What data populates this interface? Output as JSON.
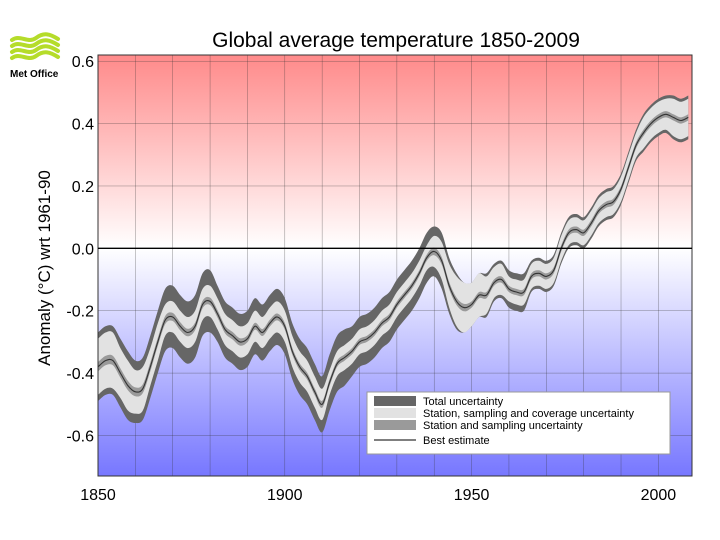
{
  "brand": {
    "name": "Met Office",
    "logo_color": "#b5dc2a"
  },
  "chart_data": {
    "type": "line",
    "title": "Global average temperature 1850-2009",
    "xlabel": "",
    "ylabel": "Anomaly (°C) wrt 1961-90",
    "xlim": [
      1850,
      2009
    ],
    "ylim": [
      -0.73,
      0.62
    ],
    "x_ticks": [
      1850,
      1900,
      1950,
      2000
    ],
    "y_ticks": [
      -0.6,
      -0.4,
      -0.2,
      0.0,
      0.2,
      0.4,
      0.6
    ],
    "y_tick_labels": [
      "-0.6",
      "-0.4",
      "-0.2",
      "0.0",
      "0.2",
      "0.4",
      "0.6"
    ],
    "x_tick_labels": [
      "1850",
      "1900",
      "1950",
      "2000"
    ],
    "grid": true,
    "background": {
      "warm_color": "#ff8a8a",
      "cool_color": "#7777ff"
    },
    "colors": {
      "total_uncertainty": "#666666",
      "coverage_uncertainty": "#e2e2e2",
      "sampling_uncertainty": "#9a9a9a",
      "best_estimate": "#333333"
    },
    "legend": {
      "position": "bottom-right",
      "entries": [
        "Total uncertainty",
        "Station, sampling and coverage uncertainty",
        "Station and sampling uncertainty",
        "Best estimate"
      ]
    },
    "series": [
      {
        "name": "Best estimate",
        "x": [
          1850,
          1852,
          1854,
          1856,
          1858,
          1860,
          1862,
          1864,
          1866,
          1868,
          1870,
          1872,
          1874,
          1876,
          1878,
          1880,
          1882,
          1884,
          1886,
          1888,
          1890,
          1892,
          1894,
          1896,
          1898,
          1900,
          1902,
          1904,
          1906,
          1908,
          1910,
          1912,
          1914,
          1916,
          1918,
          1920,
          1922,
          1924,
          1926,
          1928,
          1930,
          1932,
          1934,
          1936,
          1938,
          1940,
          1942,
          1944,
          1946,
          1948,
          1950,
          1952,
          1954,
          1956,
          1958,
          1960,
          1962,
          1964,
          1966,
          1968,
          1970,
          1972,
          1974,
          1976,
          1978,
          1980,
          1982,
          1984,
          1986,
          1988,
          1990,
          1992,
          1994,
          1996,
          1998,
          2000,
          2002,
          2004,
          2006,
          2008
        ],
        "y": [
          -0.38,
          -0.36,
          -0.36,
          -0.4,
          -0.44,
          -0.46,
          -0.45,
          -0.38,
          -0.3,
          -0.23,
          -0.22,
          -0.25,
          -0.27,
          -0.25,
          -0.18,
          -0.17,
          -0.21,
          -0.26,
          -0.28,
          -0.3,
          -0.29,
          -0.25,
          -0.27,
          -0.24,
          -0.22,
          -0.25,
          -0.33,
          -0.38,
          -0.41,
          -0.46,
          -0.5,
          -0.43,
          -0.37,
          -0.35,
          -0.33,
          -0.3,
          -0.29,
          -0.27,
          -0.24,
          -0.22,
          -0.18,
          -0.15,
          -0.12,
          -0.08,
          -0.03,
          -0.01,
          -0.04,
          -0.12,
          -0.17,
          -0.19,
          -0.18,
          -0.15,
          -0.15,
          -0.11,
          -0.1,
          -0.13,
          -0.14,
          -0.14,
          -0.09,
          -0.08,
          -0.09,
          -0.07,
          0.0,
          0.05,
          0.06,
          0.05,
          0.08,
          0.12,
          0.14,
          0.15,
          0.19,
          0.26,
          0.33,
          0.37,
          0.4,
          0.42,
          0.43,
          0.42,
          0.41,
          0.42
        ]
      },
      {
        "name": "Total uncertainty",
        "x": [
          1850,
          1852,
          1854,
          1856,
          1858,
          1860,
          1862,
          1864,
          1866,
          1868,
          1870,
          1872,
          1874,
          1876,
          1878,
          1880,
          1882,
          1884,
          1886,
          1888,
          1890,
          1892,
          1894,
          1896,
          1898,
          1900,
          1902,
          1904,
          1906,
          1908,
          1910,
          1912,
          1914,
          1916,
          1918,
          1920,
          1922,
          1924,
          1926,
          1928,
          1930,
          1932,
          1934,
          1936,
          1938,
          1940,
          1942,
          1944,
          1946,
          1948,
          1950,
          1952,
          1954,
          1956,
          1958,
          1960,
          1962,
          1964,
          1966,
          1968,
          1970,
          1972,
          1974,
          1976,
          1978,
          1980,
          1982,
          1984,
          1986,
          1988,
          1990,
          1992,
          1994,
          1996,
          1998,
          2000,
          2002,
          2004,
          2006,
          2008
        ],
        "halfwidth": [
          0.11,
          0.11,
          0.11,
          0.11,
          0.11,
          0.1,
          0.1,
          0.1,
          0.1,
          0.1,
          0.1,
          0.1,
          0.1,
          0.1,
          0.1,
          0.1,
          0.09,
          0.09,
          0.09,
          0.09,
          0.09,
          0.09,
          0.09,
          0.09,
          0.09,
          0.09,
          0.09,
          0.09,
          0.09,
          0.09,
          0.09,
          0.09,
          0.09,
          0.09,
          0.08,
          0.08,
          0.08,
          0.08,
          0.08,
          0.08,
          0.08,
          0.08,
          0.08,
          0.08,
          0.08,
          0.08,
          0.09,
          0.09,
          0.09,
          0.08,
          0.07,
          0.07,
          0.07,
          0.06,
          0.06,
          0.06,
          0.06,
          0.06,
          0.05,
          0.05,
          0.05,
          0.05,
          0.05,
          0.05,
          0.05,
          0.05,
          0.05,
          0.05,
          0.05,
          0.05,
          0.05,
          0.05,
          0.05,
          0.06,
          0.06,
          0.06,
          0.06,
          0.07,
          0.07,
          0.07
        ]
      },
      {
        "name": "Station, sampling and coverage uncertainty",
        "x": [
          1850,
          1852,
          1854,
          1856,
          1858,
          1860,
          1862,
          1864,
          1866,
          1868,
          1870,
          1872,
          1874,
          1876,
          1878,
          1880,
          1882,
          1884,
          1886,
          1888,
          1890,
          1892,
          1894,
          1896,
          1898,
          1900,
          1902,
          1904,
          1906,
          1908,
          1910,
          1912,
          1914,
          1916,
          1918,
          1920,
          1922,
          1924,
          1926,
          1928,
          1930,
          1932,
          1934,
          1936,
          1938,
          1940,
          1942,
          1944,
          1946,
          1948,
          1950,
          1952,
          1954,
          1956,
          1958,
          1960,
          1962,
          1964,
          1966,
          1968,
          1970,
          1972,
          1974,
          1976,
          1978,
          1980,
          1982,
          1984,
          1986,
          1988,
          1990,
          1992,
          1994,
          1996,
          1998,
          2000,
          2002,
          2004,
          2006,
          2008
        ],
        "halfwidth": [
          0.09,
          0.09,
          0.09,
          0.08,
          0.08,
          0.07,
          0.07,
          0.06,
          0.06,
          0.05,
          0.05,
          0.05,
          0.05,
          0.05,
          0.05,
          0.05,
          0.05,
          0.05,
          0.05,
          0.05,
          0.05,
          0.05,
          0.05,
          0.05,
          0.05,
          0.05,
          0.05,
          0.05,
          0.05,
          0.05,
          0.05,
          0.04,
          0.04,
          0.04,
          0.04,
          0.04,
          0.04,
          0.04,
          0.04,
          0.04,
          0.04,
          0.04,
          0.04,
          0.04,
          0.04,
          0.05,
          0.06,
          0.07,
          0.08,
          0.08,
          0.07,
          0.07,
          0.06,
          0.05,
          0.05,
          0.04,
          0.04,
          0.04,
          0.04,
          0.04,
          0.04,
          0.04,
          0.04,
          0.04,
          0.04,
          0.04,
          0.04,
          0.04,
          0.04,
          0.04,
          0.04,
          0.04,
          0.04,
          0.05,
          0.05,
          0.05,
          0.05,
          0.06,
          0.06,
          0.06
        ]
      },
      {
        "name": "Station and sampling uncertainty",
        "x": [
          1850,
          1852,
          1854,
          1856,
          1858,
          1860,
          1862,
          1864,
          1866,
          1868,
          1870,
          1872,
          1874,
          1876,
          1878,
          1880,
          1882,
          1884,
          1886,
          1888,
          1890,
          1892,
          1894,
          1896,
          1898,
          1900,
          1902,
          1904,
          1906,
          1908,
          1910,
          1912,
          1914,
          1916,
          1918,
          1920,
          1922,
          1924,
          1926,
          1928,
          1930,
          1932,
          1934,
          1936,
          1938,
          1940,
          1942,
          1944,
          1946,
          1948,
          1950,
          1952,
          1954,
          1956,
          1958,
          1960,
          1962,
          1964,
          1966,
          1968,
          1970,
          1972,
          1974,
          1976,
          1978,
          1980,
          1982,
          1984,
          1986,
          1988,
          1990,
          1992,
          1994,
          1996,
          1998,
          2000,
          2002,
          2004,
          2006,
          2008
        ],
        "halfwidth": [
          0.015,
          0.015,
          0.015,
          0.015,
          0.015,
          0.014,
          0.014,
          0.014,
          0.013,
          0.013,
          0.013,
          0.013,
          0.012,
          0.012,
          0.012,
          0.012,
          0.012,
          0.012,
          0.012,
          0.012,
          0.011,
          0.011,
          0.011,
          0.011,
          0.011,
          0.011,
          0.011,
          0.011,
          0.011,
          0.011,
          0.011,
          0.011,
          0.01,
          0.01,
          0.01,
          0.01,
          0.01,
          0.01,
          0.01,
          0.01,
          0.01,
          0.01,
          0.01,
          0.01,
          0.01,
          0.012,
          0.012,
          0.012,
          0.012,
          0.012,
          0.01,
          0.01,
          0.01,
          0.01,
          0.01,
          0.01,
          0.01,
          0.01,
          0.01,
          0.01,
          0.01,
          0.01,
          0.01,
          0.01,
          0.01,
          0.01,
          0.01,
          0.01,
          0.01,
          0.01,
          0.01,
          0.01,
          0.01,
          0.01,
          0.01,
          0.01,
          0.01,
          0.01,
          0.01,
          0.01
        ]
      }
    ]
  }
}
